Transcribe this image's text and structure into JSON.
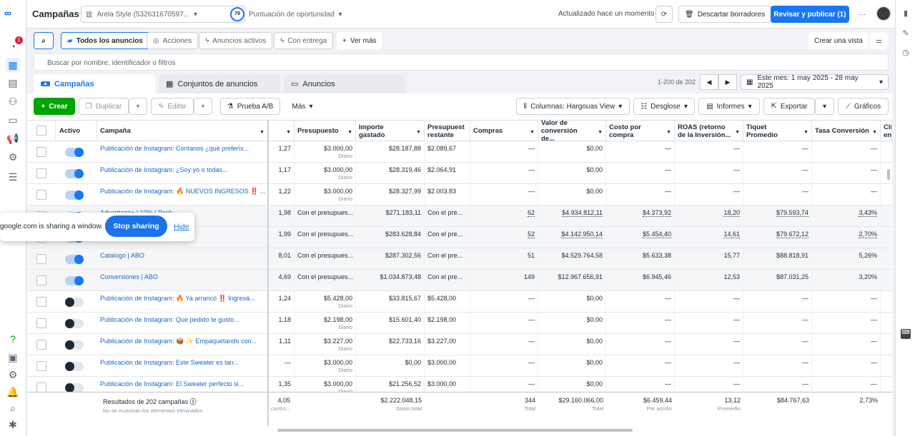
{
  "header": {
    "title": "Campañas",
    "account": "Arela Style (532631670597...",
    "score_value": "79",
    "score_label": "Puntuación de oportunidad",
    "updated": "Actualizado hace un momento",
    "discard": "Descartar borradores",
    "publish": "Revisar y publicar (1)",
    "more": "···"
  },
  "nav": {
    "notifications_badge": "1"
  },
  "filters": {
    "all_ads": "Todos los anuncios",
    "actions": "Acciones",
    "active_ads": "Anuncios activos",
    "with_delivery": "Con entrega",
    "see_more": "Ver más",
    "create_view": "Crear una vista"
  },
  "search": {
    "placeholder": "Buscar por nombre, identificador o filtros"
  },
  "tabs": {
    "campaigns": "Campañas",
    "adsets": "Conjuntos de anuncios",
    "ads": "Anuncios"
  },
  "pagination": {
    "range": "1-200 de 202",
    "date": "Este mes: 1 may 2025 - 28 may 2025"
  },
  "toolbar": {
    "create": "Crear",
    "duplicate": "Duplicar",
    "edit": "Editar",
    "ab_test": "Prueba A/B",
    "more": "Más",
    "columns": "Columnas: Hargouas View",
    "breakdown": "Desglose",
    "reports": "Informes",
    "export": "Exportar",
    "charts": "Gráficos"
  },
  "columns": {
    "active": "Activo",
    "campaign": "Campaña",
    "budget": "Presupuesto",
    "spent": "Importe gastado",
    "remaining": "Presupuest restante",
    "purchases": "Compras",
    "conv_value": "Valor de conversión de...",
    "cost_per": "Costo por compra",
    "roas": "ROAS (retorno de la Inversión...",
    "ticket": "Tiquet Promedio",
    "conv_rate": "Tasa Conversión",
    "extra": "Cli en"
  },
  "rows": [
    {
      "name": "Publicación de Instagram: Contanos ¿qué preferís...",
      "c0": "1,27",
      "budget": "$3.000,00",
      "budget_sub": "Diario",
      "spent": "$28.187,88",
      "remaining": "$2.089,67",
      "purchases": "—",
      "value": "$0,00",
      "cost": "—",
      "roas": "—",
      "ticket": "—",
      "rate": "—",
      "on": true
    },
    {
      "name": "Publicación de Instagram: ¿Soy yo o todas...",
      "c0": "1,17",
      "budget": "$3.000,00",
      "budget_sub": "Diario",
      "spent": "$28.319,46",
      "remaining": "$2.064,91",
      "purchases": "—",
      "value": "$0,00",
      "cost": "—",
      "roas": "—",
      "ticket": "—",
      "rate": "—",
      "on": true
    },
    {
      "name": "Publicación de Instagram: 🔥 NUEVOS INGRESOS ‼️ ...",
      "c0": "1,22",
      "budget": "$3.000,00",
      "budget_sub": "Diario",
      "spent": "$28.327,99",
      "remaining": "$2.003,83",
      "purchases": "—",
      "value": "$0,00",
      "cost": "—",
      "roas": "—",
      "ticket": "—",
      "rate": "—",
      "on": true
    },
    {
      "name": "Advantage+ | 10% | Pack",
      "c0": "1,98",
      "budget": "Con el presupues...",
      "budget_sub": "",
      "spent": "$271.183,11",
      "remaining": "Con el pre...",
      "purchases": "62",
      "value": "$4.934.812,11",
      "cost": "$4.373,92",
      "roas": "18,20",
      "ticket": "$79.593,74",
      "rate": "3,43%",
      "on": true
    },
    {
      "name": "",
      "c0": "1,99",
      "budget": "Con el presupues...",
      "budget_sub": "",
      "spent": "$283.628,84",
      "remaining": "Con el pre...",
      "purchases": "52",
      "value": "$4.142.950,14",
      "cost": "$5.454,40",
      "roas": "14,61",
      "ticket": "$79.672,12",
      "rate": "2,70%",
      "on": true
    },
    {
      "name": "Catalogo | ABO",
      "c0": "8,01",
      "budget": "Con el presupues...",
      "budget_sub": "",
      "spent": "$287.302,56",
      "remaining": "Con el pre...",
      "purchases": "51",
      "value": "$4.529.764,58",
      "cost": "$5.633,38",
      "roas": "15,77",
      "ticket": "$88.818,91",
      "rate": "5,26%",
      "on": true
    },
    {
      "name": "Conversiones | ABO",
      "c0": "4,69",
      "budget": "Con el presupues...",
      "budget_sub": "",
      "spent": "$1.034.873,48",
      "remaining": "Con el pre...",
      "purchases": "149",
      "value": "$12.967.656,91",
      "cost": "$6.945,46",
      "roas": "12,53",
      "ticket": "$87.031,25",
      "rate": "3,20%",
      "on": true
    },
    {
      "name": "Publicación de Instagram: 🔥 Ya arrancó ‼️ Ingresá...",
      "c0": "1,24",
      "budget": "$5.428,00",
      "budget_sub": "Diario",
      "spent": "$33.815,67",
      "remaining": "$5.428,00",
      "purchases": "—",
      "value": "$0,00",
      "cost": "—",
      "roas": "—",
      "ticket": "—",
      "rate": "—",
      "on": false
    },
    {
      "name": "Publicación de Instagram: Que pedido te gusto...",
      "c0": "1,18",
      "budget": "$2.198,00",
      "budget_sub": "Diario",
      "spent": "$15.601,40",
      "remaining": "$2.198,00",
      "purchases": "—",
      "value": "$0,00",
      "cost": "—",
      "roas": "—",
      "ticket": "—",
      "rate": "—",
      "on": false
    },
    {
      "name": "Publicación de Instagram: 📦 ✨ Empaquetando con...",
      "c0": "1,11",
      "budget": "$3.227,00",
      "budget_sub": "Diario",
      "spent": "$22.733,16",
      "remaining": "$3.227,00",
      "purchases": "—",
      "value": "$0,00",
      "cost": "—",
      "roas": "—",
      "ticket": "—",
      "rate": "—",
      "on": false
    },
    {
      "name": "Publicación de Instagram: Este Sweater es tan...",
      "c0": "—",
      "budget": "$3.000,00",
      "budget_sub": "Diario",
      "spent": "$0,00",
      "remaining": "$3.000,00",
      "purchases": "—",
      "value": "$0,00",
      "cost": "—",
      "roas": "—",
      "ticket": "—",
      "rate": "—",
      "on": false
    },
    {
      "name": "Publicación de Instagram: El Sweater perfecto si...",
      "c0": "1,35",
      "budget": "$3.000,00",
      "budget_sub": "Diario",
      "spent": "$21.256,52",
      "remaining": "$3.000,00",
      "purchases": "—",
      "value": "$0,00",
      "cost": "—",
      "roas": "—",
      "ticket": "—",
      "rate": "—",
      "on": false
    }
  ],
  "footer": {
    "results": "Resultados de 202 campañas",
    "results_sub": "No se muestran los elementos eliminados",
    "c0": "4,05",
    "c0_sub": "contro...",
    "spent": "$2.222.048,15",
    "spent_sub": "Gasto total",
    "purchases": "344",
    "purchases_sub": "Total",
    "value": "$29.160.066,00",
    "value_sub": "Total",
    "cost": "$6.459,44",
    "cost_sub": "Por acción",
    "roas": "13,12",
    "roas_sub": "Promedio",
    "ticket": "$84.767,63",
    "rate": "2,73%"
  },
  "share": {
    "message": "google.com is sharing a window.",
    "stop": "Stop sharing",
    "hide": "Hide"
  }
}
